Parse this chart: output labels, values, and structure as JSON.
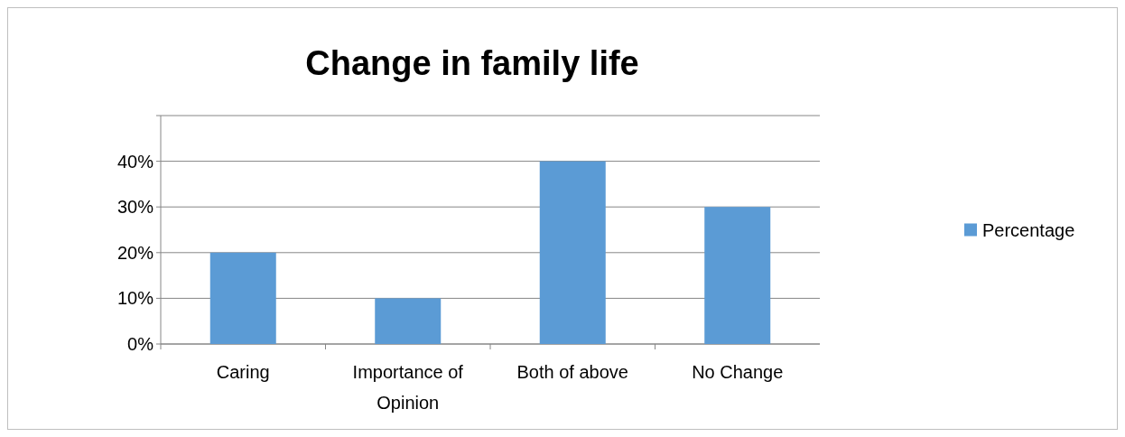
{
  "chart_data": {
    "type": "bar",
    "title": "Change in family life",
    "categories": [
      "Caring",
      "Importance of Opinion",
      "Both of above",
      "No Change"
    ],
    "series": [
      {
        "name": "Percentage",
        "color": "#5b9bd5",
        "values": [
          20,
          10,
          40,
          30
        ]
      }
    ],
    "ylim": [
      0,
      50
    ],
    "yticks": [
      {
        "value": 0,
        "label": "0%"
      },
      {
        "value": 10,
        "label": "10%"
      },
      {
        "value": 20,
        "label": "20%"
      },
      {
        "value": 30,
        "label": "30%"
      },
      {
        "value": 40,
        "label": "40%"
      },
      {
        "value": 50,
        "label": null
      }
    ],
    "grid": "y",
    "legend": "right"
  }
}
